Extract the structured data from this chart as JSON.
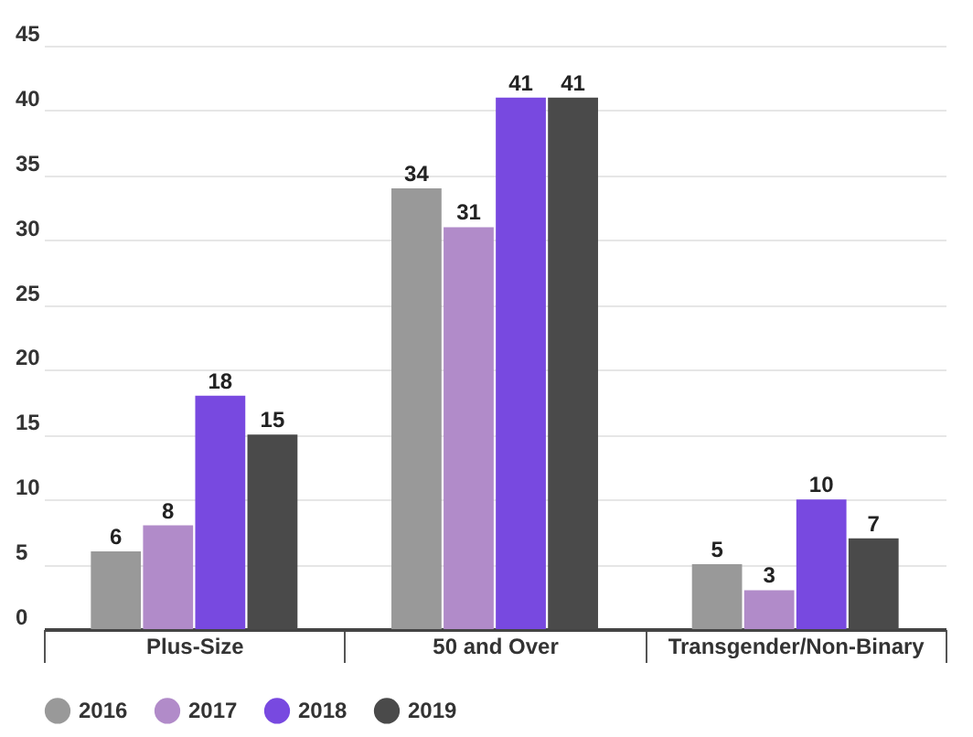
{
  "chart_data": {
    "type": "bar",
    "categories": [
      "Plus-Size",
      "50 and Over",
      "Transgender/Non-Binary"
    ],
    "series": [
      {
        "name": "2016",
        "color": "#999999",
        "values": [
          6,
          34,
          5
        ]
      },
      {
        "name": "2017",
        "color": "#b18bc9",
        "values": [
          8,
          31,
          3
        ]
      },
      {
        "name": "2018",
        "color": "#7849e0",
        "values": [
          18,
          41,
          10
        ]
      },
      {
        "name": "2019",
        "color": "#4a4a4a",
        "values": [
          15,
          41,
          7
        ]
      }
    ],
    "ylim": [
      0,
      45
    ],
    "yticks": [
      0,
      5,
      10,
      15,
      20,
      25,
      30,
      35,
      40,
      45
    ],
    "grid": "y",
    "legend": "bottom",
    "data_labels": true
  }
}
